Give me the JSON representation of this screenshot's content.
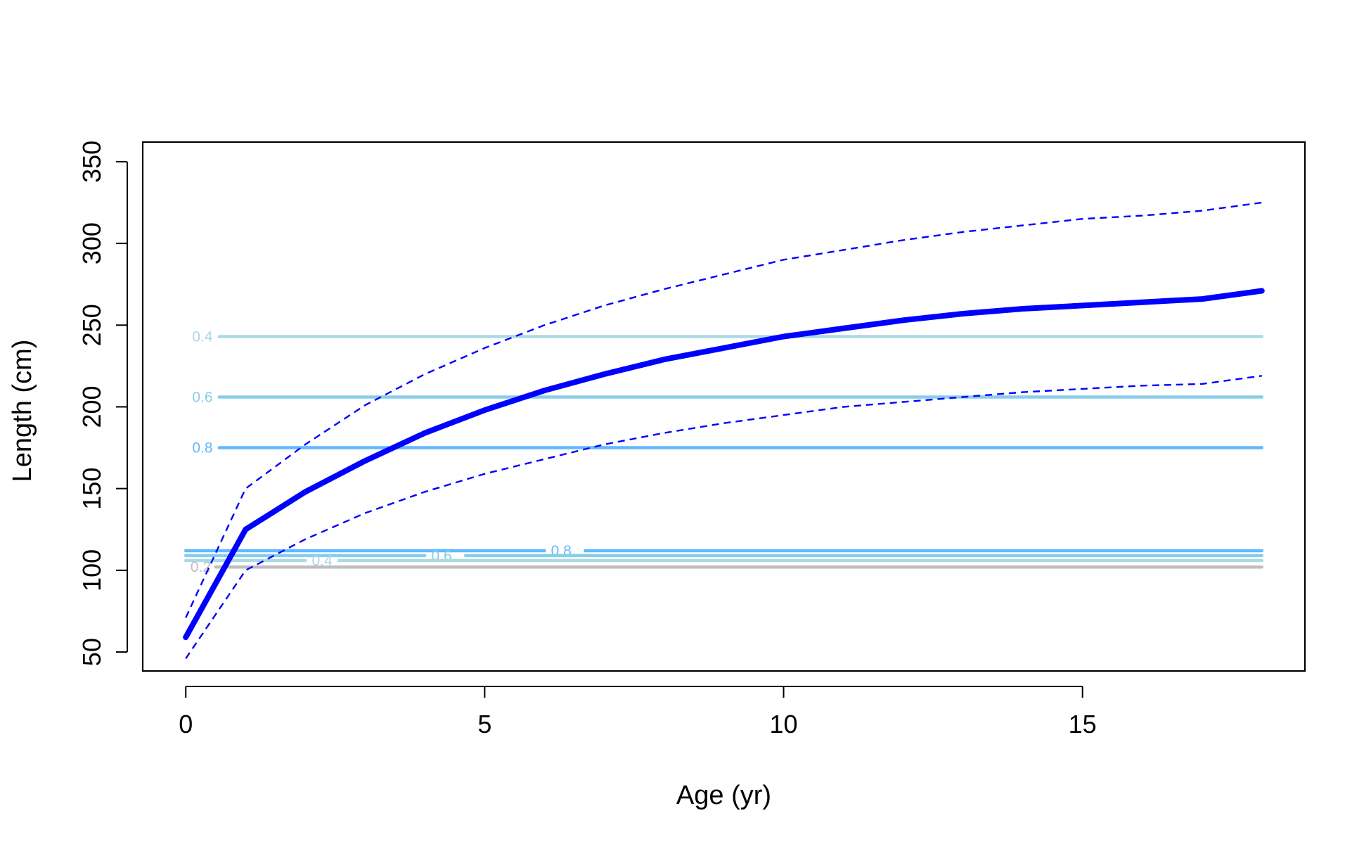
{
  "chart_data": {
    "type": "line",
    "title": "",
    "xlabel": "Age (yr)",
    "ylabel": "Length (cm)",
    "xlim": [
      -0.72,
      18.72
    ],
    "ylim": [
      38.4,
      362
    ],
    "x_ticks": [
      0,
      5,
      10,
      15
    ],
    "y_ticks": [
      50,
      100,
      150,
      200,
      250,
      300,
      350
    ],
    "grid": false,
    "legend": "none",
    "series": [
      {
        "style": "thick-solid",
        "color": "#0000ff",
        "x": [
          0,
          1,
          2,
          3,
          4,
          5,
          6,
          7,
          8,
          9,
          10,
          11,
          12,
          13,
          14,
          15,
          16,
          17,
          18
        ],
        "y": [
          59,
          125,
          148,
          167,
          184,
          198,
          210,
          220,
          229,
          236,
          243,
          248,
          253,
          257,
          260,
          262,
          264,
          266,
          271
        ]
      },
      {
        "style": "dashed",
        "color": "#0000ff",
        "x": [
          0,
          1,
          2,
          3,
          4,
          5,
          6,
          7,
          8,
          9,
          10,
          11,
          12,
          13,
          14,
          15,
          16,
          17,
          18
        ],
        "y": [
          71,
          150,
          177,
          201,
          220,
          236,
          250,
          262,
          272,
          281,
          290,
          296,
          302,
          307,
          311,
          315,
          317,
          320,
          325
        ]
      },
      {
        "style": "dashed",
        "color": "#0000ff",
        "x": [
          0,
          1,
          2,
          3,
          4,
          5,
          6,
          7,
          8,
          9,
          10,
          11,
          12,
          13,
          14,
          15,
          16,
          17,
          18
        ],
        "y": [
          46,
          100,
          119,
          135,
          148,
          159,
          168,
          177,
          184,
          190,
          195,
          200,
          203,
          206,
          209,
          211,
          213,
          214,
          219
        ]
      }
    ],
    "contours": [
      {
        "label": "0.4",
        "y": 243,
        "color": "#add8e6",
        "x_from": 0,
        "x_to": 18,
        "label_x": 0.28,
        "gap_to": 0.56
      },
      {
        "label": "0.6",
        "y": 206,
        "color": "#87ceeb",
        "x_from": 0,
        "x_to": 18,
        "label_x": 0.28,
        "gap_to": 0.56
      },
      {
        "label": "0.8",
        "y": 175,
        "color": "#63b8ff",
        "x_from": 0,
        "x_to": 18,
        "label_x": 0.28,
        "gap_to": 0.56
      },
      {
        "label": "0.8",
        "y": 112,
        "color": "#63b8ff",
        "x_from": 0,
        "x_to": 18,
        "label_x": 6.28,
        "gap_from": 6.0,
        "gap_to": 6.68
      },
      {
        "label": "0.6",
        "y": 109,
        "color": "#87ceeb",
        "x_from": 0,
        "x_to": 18,
        "label_x": 4.28,
        "gap_from": 4.0,
        "gap_to": 4.68
      },
      {
        "label": "0.4",
        "y": 106,
        "color": "#add8e6",
        "x_from": 0,
        "x_to": 18,
        "label_x": 2.28,
        "gap_from": 2.0,
        "gap_to": 2.56
      },
      {
        "label": "0.2",
        "y": 102,
        "color": "#bebebe",
        "x_from": 0,
        "x_to": 18,
        "label_x": 0.25,
        "gap_to": 0.5
      }
    ]
  }
}
